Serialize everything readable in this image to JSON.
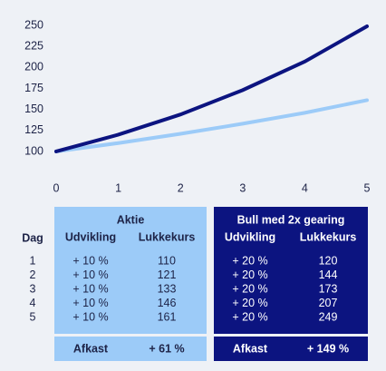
{
  "chart_data": {
    "type": "line",
    "x": [
      0,
      1,
      2,
      3,
      4,
      5
    ],
    "xlim": [
      0,
      5
    ],
    "xticks": [
      0,
      1,
      2,
      3,
      4,
      5
    ],
    "ylim": [
      95,
      255
    ],
    "yticks": [
      100,
      125,
      150,
      175,
      200,
      225,
      250
    ],
    "series": [
      {
        "color": "#9ccbf8",
        "values": [
          100,
          110,
          121,
          133,
          146,
          161
        ]
      },
      {
        "color": "#0c1480",
        "values": [
          100,
          120,
          144,
          173,
          207,
          249
        ]
      }
    ]
  },
  "table": {
    "row_header": "Dag",
    "days": [
      1,
      2,
      3,
      4,
      5
    ],
    "groups": [
      {
        "title": "Aktie",
        "columns": [
          "Udvikling",
          "Lukkekurs"
        ],
        "rows": [
          [
            "+ 10 %",
            110
          ],
          [
            "+ 10 %",
            121
          ],
          [
            "+ 10 %",
            133
          ],
          [
            "+ 10 %",
            146
          ],
          [
            "+ 10 %",
            161
          ]
        ],
        "footer": [
          "Afkast",
          "+ 61 %"
        ]
      },
      {
        "title": "Bull med 2x gearing",
        "columns": [
          "Udvikling",
          "Lukkekurs"
        ],
        "rows": [
          [
            "+ 20 %",
            120
          ],
          [
            "+ 20 %",
            144
          ],
          [
            "+ 20 %",
            173
          ],
          [
            "+ 20 %",
            207
          ],
          [
            "+ 20 %",
            249
          ]
        ],
        "footer": [
          "Afkast",
          "+ 149 %"
        ]
      }
    ]
  }
}
